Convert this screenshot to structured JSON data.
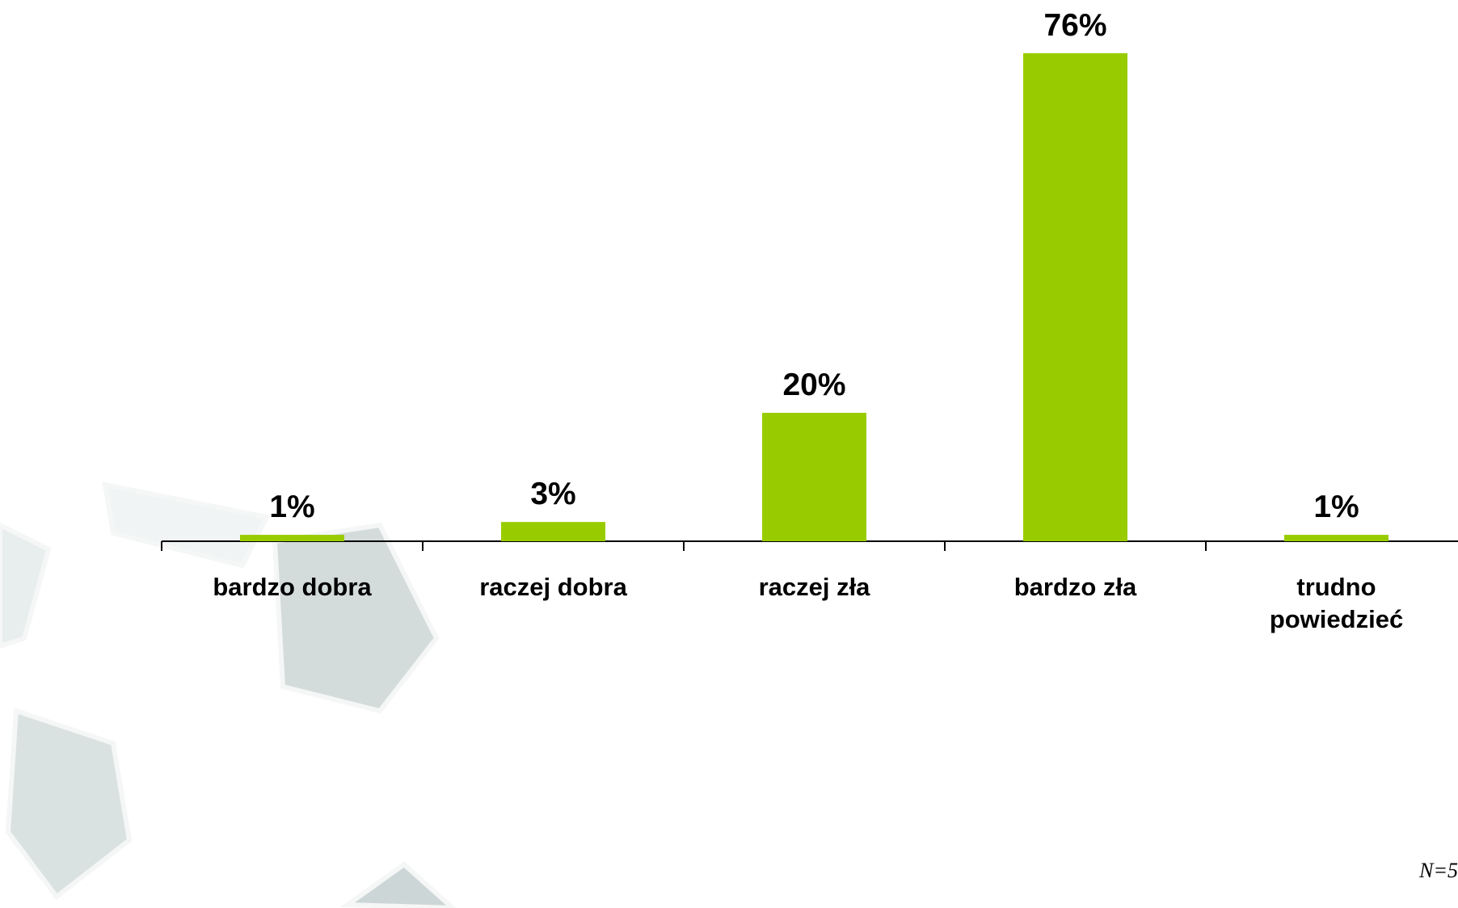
{
  "chart_data": {
    "type": "bar",
    "categories": [
      "bardzo dobra",
      "raczej dobra",
      "raczej zła",
      "bardzo zła",
      "trudno powiedzieć"
    ],
    "values": [
      1,
      3,
      20,
      76,
      1
    ],
    "value_labels": [
      "1%",
      "3%",
      "20%",
      "76%",
      "1%"
    ],
    "color": "#99cc00",
    "footnote": "N=5"
  }
}
